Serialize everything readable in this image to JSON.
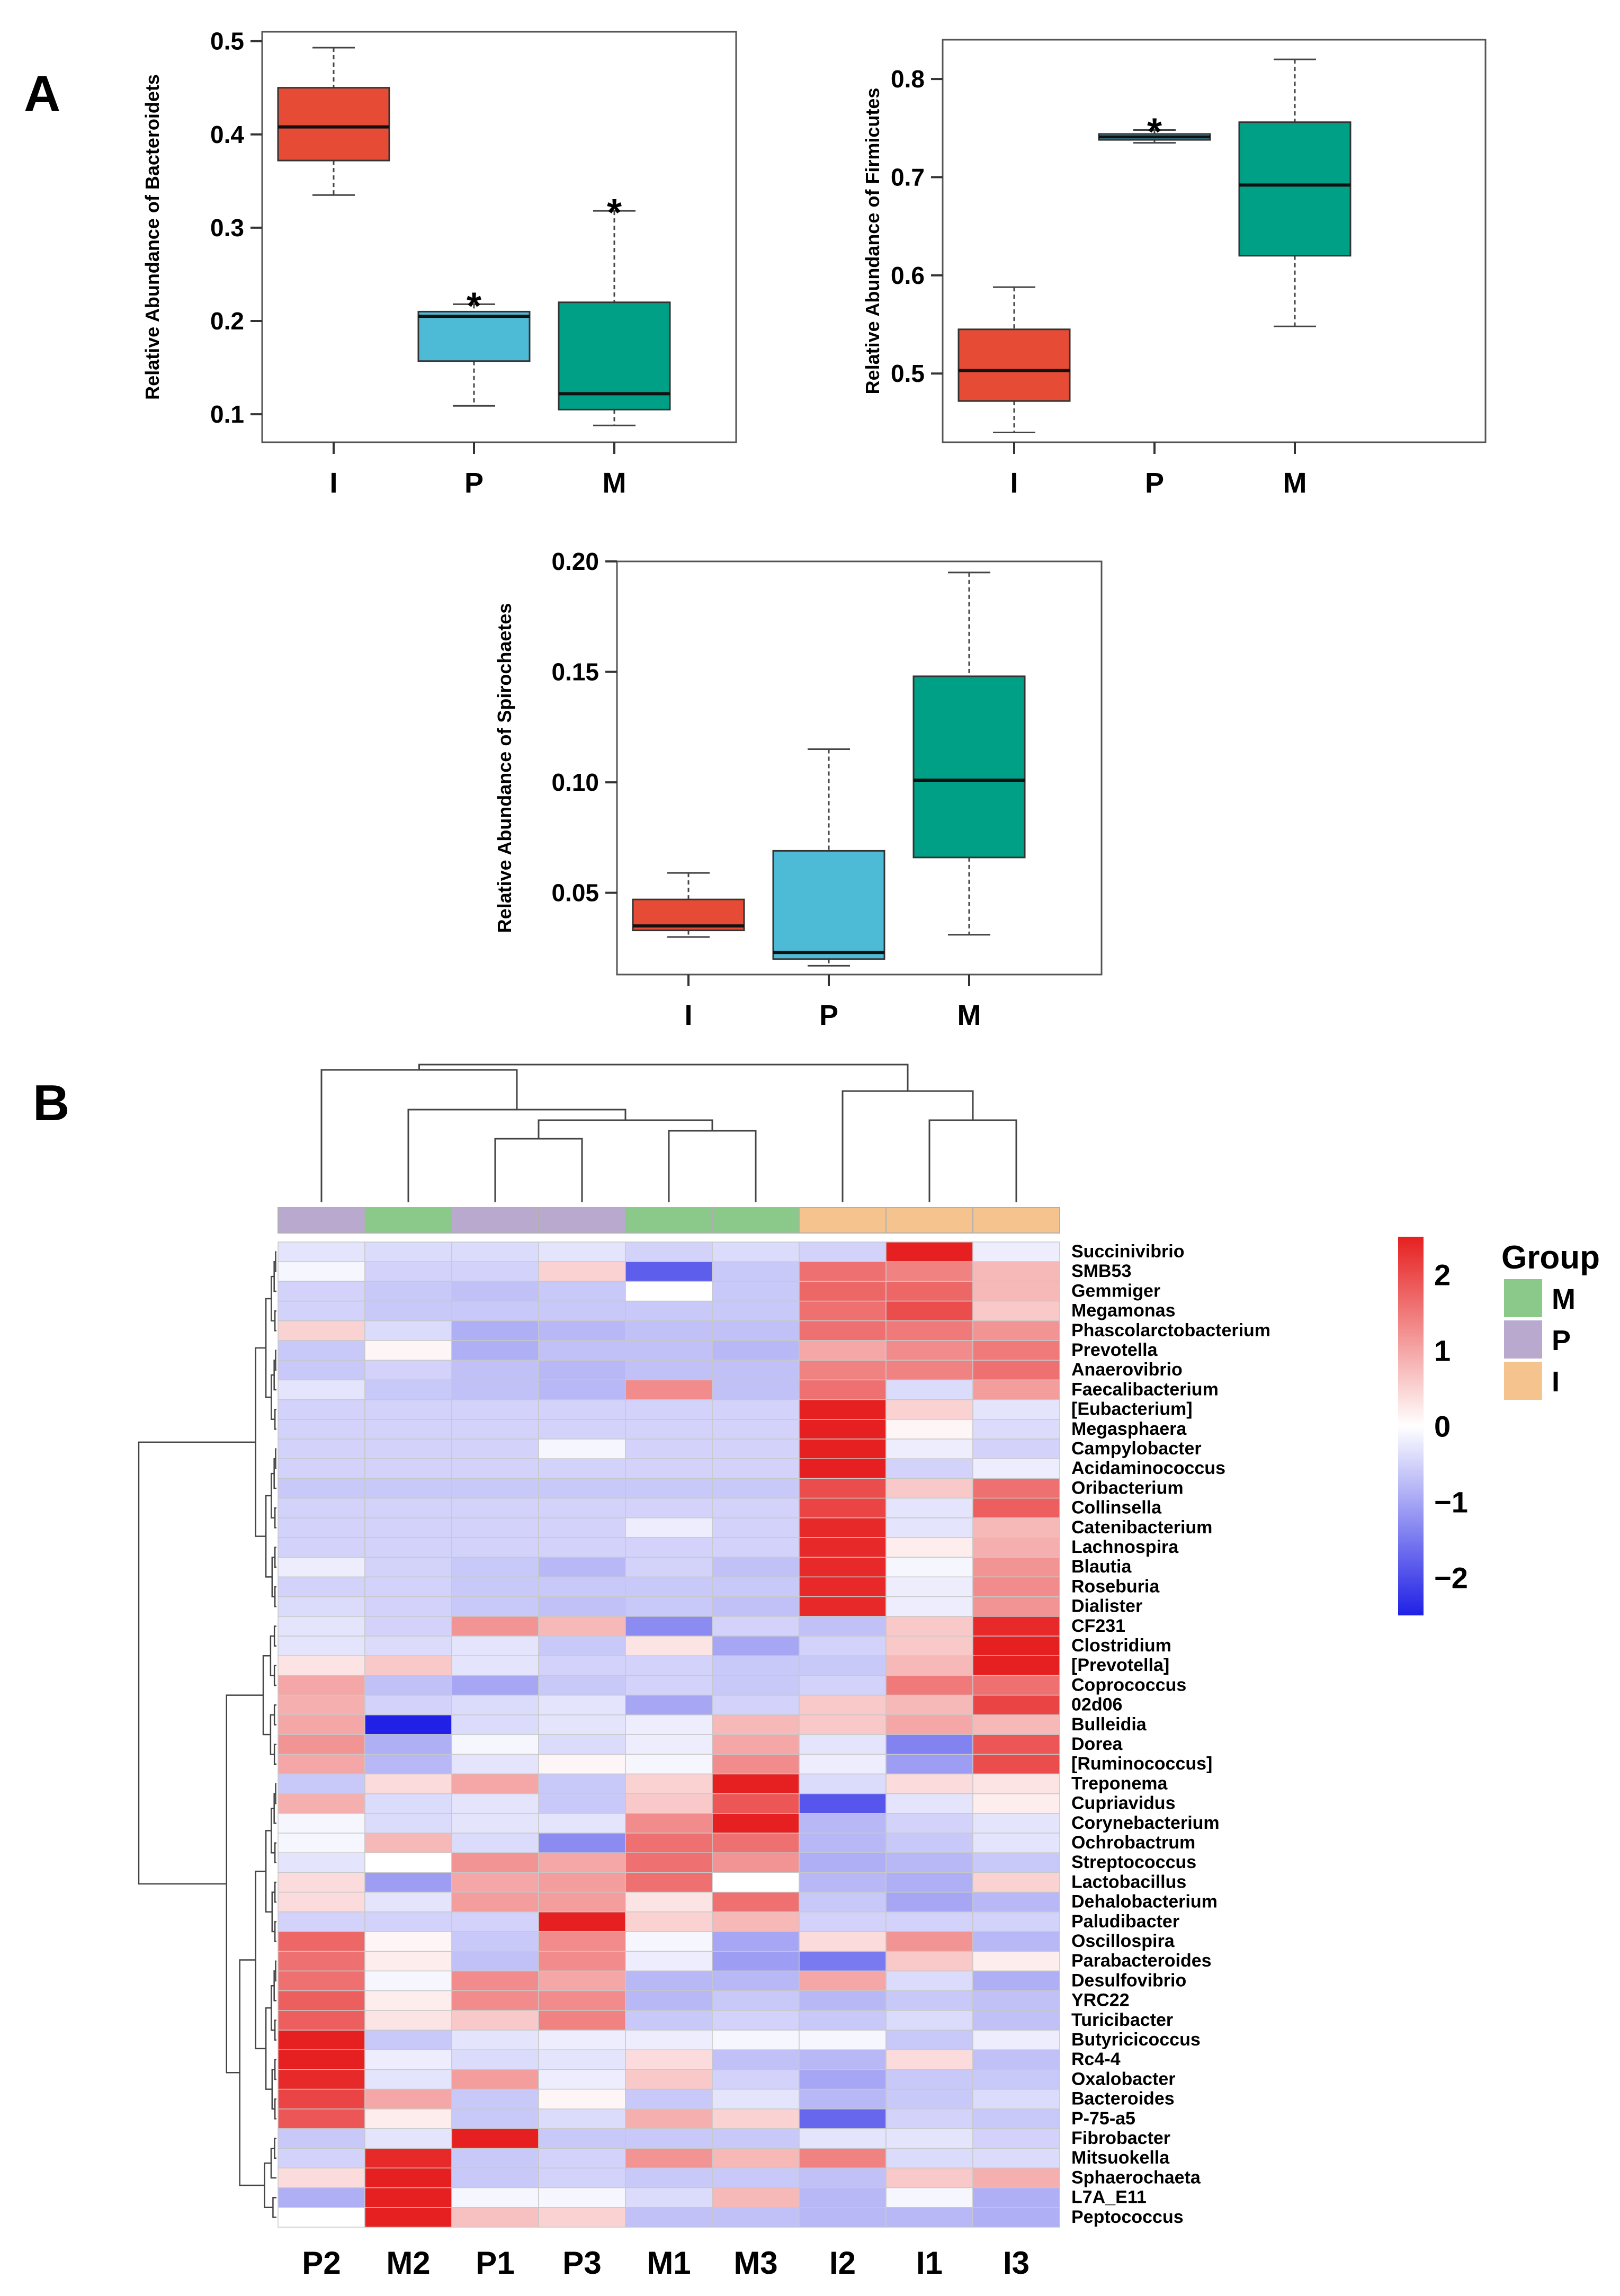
{
  "chart_data": [
    {
      "type": "box",
      "panel": "A",
      "ylabel": "Relative Abundance of Bacteroidets",
      "ylim": [
        0.07,
        0.51
      ],
      "yticks": [
        0.1,
        0.2,
        0.3,
        0.4,
        0.5
      ],
      "ytick_labels": [
        "0.1",
        "0.2",
        "0.3",
        "0.4",
        "0.5"
      ],
      "categories": [
        "I",
        "P",
        "M"
      ],
      "colors": [
        "#E64B35",
        "#4DBBD5",
        "#00A087"
      ],
      "boxes": [
        {
          "min": 0.335,
          "q1": 0.372,
          "median": 0.408,
          "q3": 0.45,
          "max": 0.493,
          "star": false
        },
        {
          "min": 0.109,
          "q1": 0.157,
          "median": 0.205,
          "q3": 0.21,
          "max": 0.218,
          "star": true
        },
        {
          "min": 0.088,
          "q1": 0.105,
          "median": 0.122,
          "q3": 0.22,
          "max": 0.318,
          "star": true
        }
      ],
      "star_text": "*"
    },
    {
      "type": "box",
      "ylabel": "Relative Abundance of Firmicutes",
      "ylim": [
        0.43,
        0.84
      ],
      "yticks": [
        0.5,
        0.6,
        0.7,
        0.8
      ],
      "ytick_labels": [
        "0.5",
        "0.6",
        "0.7",
        "0.8"
      ],
      "categories": [
        "I",
        "P",
        "M"
      ],
      "colors": [
        "#E64B35",
        "#4DBBD5",
        "#00A087"
      ],
      "boxes": [
        {
          "min": 0.44,
          "q1": 0.472,
          "median": 0.503,
          "q3": 0.545,
          "max": 0.588,
          "star": false
        },
        {
          "min": 0.735,
          "q1": 0.738,
          "median": 0.741,
          "q3": 0.744,
          "max": 0.748,
          "star": true
        },
        {
          "min": 0.548,
          "q1": 0.62,
          "median": 0.692,
          "q3": 0.756,
          "max": 0.82,
          "star": false
        }
      ],
      "star_text": "*"
    },
    {
      "type": "box",
      "ylabel": "Relative Abundance of Spirochaetes",
      "ylim": [
        0.013,
        0.2
      ],
      "yticks": [
        0.05,
        0.1,
        0.15,
        0.2
      ],
      "ytick_labels": [
        "0.05",
        "0.10",
        "0.15",
        "0.20"
      ],
      "categories": [
        "I",
        "P",
        "M"
      ],
      "colors": [
        "#E64B35",
        "#4DBBD5",
        "#00A087"
      ],
      "boxes": [
        {
          "min": 0.03,
          "q1": 0.033,
          "median": 0.035,
          "q3": 0.047,
          "max": 0.059,
          "star": false
        },
        {
          "min": 0.017,
          "q1": 0.02,
          "median": 0.023,
          "q3": 0.069,
          "max": 0.115,
          "star": false
        },
        {
          "min": 0.031,
          "q1": 0.066,
          "median": 0.101,
          "q3": 0.148,
          "max": 0.195,
          "star": false
        }
      ],
      "star_text": "*"
    },
    {
      "type": "heatmap",
      "panel": "B",
      "columns": [
        "P2",
        "M2",
        "P1",
        "P3",
        "M1",
        "M3",
        "I2",
        "I1",
        "I3"
      ],
      "column_groups": [
        "P",
        "M",
        "P",
        "P",
        "M",
        "M",
        "I",
        "I",
        "I"
      ],
      "rows": [
        "Succinivibrio",
        "SMB53",
        "Gemmiger",
        "Megamonas",
        "Phascolarctobacterium",
        "Prevotella",
        "Anaerovibrio",
        "Faecalibacterium",
        "[Eubacterium]",
        "Megasphaera",
        "Campylobacter",
        "Acidaminococcus",
        "Oribacterium",
        "Collinsella",
        "Catenibacterium",
        "Lachnospira",
        "Blautia",
        "Roseburia",
        "Dialister",
        "CF231",
        "Clostridium",
        "[Prevotella]",
        "Coprococcus",
        "02d06",
        "Bulleidia",
        "Dorea",
        "[Ruminococcus]",
        "Treponema",
        "Cupriavidus",
        "Corynebacterium",
        "Ochrobactrum",
        "Streptococcus",
        "Lactobacillus",
        "Dehalobacterium",
        "Paludibacter",
        "Oscillospira",
        "Parabacteroides",
        "Desulfovibrio",
        "YRC22",
        "Turicibacter",
        "Butyricicoccus",
        "Rc4-4",
        "Oxalobacter",
        "Bacteroides",
        "P-75-a5",
        "Fibrobacter",
        "Mitsuokella",
        "Sphaerochaeta",
        "L7A_E11",
        "Peptococcus"
      ],
      "values": [
        [
          -0.3,
          -0.4,
          -0.4,
          -0.3,
          -0.5,
          -0.4,
          -0.5,
          2.6,
          -0.2
        ],
        [
          -0.1,
          -0.5,
          -0.5,
          0.5,
          -1.8,
          -0.6,
          1.6,
          1.4,
          0.8
        ],
        [
          -0.5,
          -0.6,
          -0.7,
          -0.6,
          0.0,
          -0.6,
          1.7,
          1.7,
          0.8
        ],
        [
          -0.5,
          -0.6,
          -0.6,
          -0.6,
          -0.6,
          -0.6,
          1.6,
          2.0,
          0.6
        ],
        [
          0.5,
          -0.4,
          -0.9,
          -0.8,
          -0.7,
          -0.7,
          1.6,
          1.5,
          1.2
        ],
        [
          -0.6,
          0.1,
          -0.9,
          -0.7,
          -0.7,
          -0.8,
          1.0,
          1.3,
          1.5
        ],
        [
          -0.6,
          -0.5,
          -0.7,
          -0.8,
          -0.7,
          -0.7,
          1.4,
          1.4,
          1.6
        ],
        [
          -0.3,
          -0.6,
          -0.7,
          -0.8,
          1.3,
          -0.7,
          1.6,
          -0.4,
          1.1
        ],
        [
          -0.5,
          -0.5,
          -0.5,
          -0.5,
          -0.5,
          -0.5,
          2.6,
          0.5,
          -0.3
        ],
        [
          -0.5,
          -0.5,
          -0.5,
          -0.5,
          -0.5,
          -0.5,
          2.6,
          0.1,
          -0.4
        ],
        [
          -0.5,
          -0.5,
          -0.5,
          -0.1,
          -0.5,
          -0.5,
          2.6,
          -0.2,
          -0.5
        ],
        [
          -0.5,
          -0.5,
          -0.5,
          -0.5,
          -0.5,
          -0.5,
          2.6,
          -0.5,
          -0.2
        ],
        [
          -0.6,
          -0.6,
          -0.6,
          -0.6,
          -0.6,
          -0.6,
          2.0,
          0.6,
          1.6
        ],
        [
          -0.5,
          -0.5,
          -0.5,
          -0.5,
          -0.5,
          -0.5,
          2.1,
          -0.3,
          1.8
        ],
        [
          -0.5,
          -0.5,
          -0.5,
          -0.5,
          -0.2,
          -0.5,
          2.4,
          -0.3,
          0.8
        ],
        [
          -0.5,
          -0.5,
          -0.5,
          -0.5,
          -0.5,
          -0.5,
          2.4,
          0.2,
          0.9
        ],
        [
          -0.2,
          -0.5,
          -0.6,
          -0.8,
          -0.5,
          -0.7,
          2.4,
          -0.1,
          1.2
        ],
        [
          -0.5,
          -0.5,
          -0.6,
          -0.6,
          -0.6,
          -0.6,
          2.4,
          -0.2,
          1.3
        ],
        [
          -0.4,
          -0.5,
          -0.6,
          -0.7,
          -0.6,
          -0.7,
          2.4,
          -0.2,
          1.2
        ],
        [
          -0.3,
          -0.5,
          1.2,
          0.8,
          -1.3,
          -0.5,
          -0.7,
          0.6,
          2.4
        ],
        [
          -0.3,
          -0.4,
          -0.3,
          -0.6,
          0.3,
          -1.0,
          -0.5,
          0.6,
          2.6
        ],
        [
          0.3,
          0.6,
          -0.3,
          -0.5,
          -0.5,
          -0.6,
          -0.6,
          0.8,
          2.6
        ],
        [
          1.0,
          -0.7,
          -1.0,
          -0.6,
          -0.5,
          -0.6,
          -0.5,
          1.5,
          1.6
        ],
        [
          0.9,
          -0.5,
          -0.4,
          -0.3,
          -1.0,
          -0.5,
          0.6,
          0.8,
          2.1
        ],
        [
          1.0,
          -2.5,
          -0.4,
          -0.3,
          -0.2,
          0.8,
          0.6,
          1.0,
          0.8
        ],
        [
          1.2,
          -0.9,
          -0.1,
          -0.4,
          -0.2,
          1.0,
          -0.3,
          -1.4,
          1.9
        ],
        [
          1.0,
          -0.8,
          -0.3,
          0.1,
          -0.1,
          1.3,
          -0.2,
          -1.1,
          2.0
        ],
        [
          -0.6,
          0.4,
          1.0,
          -0.6,
          0.5,
          2.6,
          -0.4,
          0.4,
          0.3
        ],
        [
          0.9,
          -0.4,
          -0.3,
          -0.6,
          0.6,
          1.9,
          -1.9,
          -0.3,
          0.2
        ],
        [
          -0.1,
          -0.4,
          -0.3,
          -0.3,
          1.3,
          2.6,
          -0.8,
          -0.5,
          -0.3
        ],
        [
          -0.1,
          0.8,
          -0.4,
          -1.3,
          1.6,
          1.6,
          -0.8,
          -0.6,
          -0.3
        ],
        [
          -0.3,
          0.0,
          1.2,
          1.0,
          1.6,
          1.2,
          -0.9,
          -0.8,
          -0.6
        ],
        [
          0.4,
          -1.1,
          1.0,
          1.1,
          1.6,
          0.0,
          -0.8,
          -0.9,
          0.5
        ],
        [
          0.4,
          -0.3,
          1.1,
          1.1,
          0.3,
          1.6,
          -0.6,
          -1.0,
          -0.8
        ],
        [
          -0.5,
          -0.5,
          -0.5,
          2.6,
          0.5,
          0.8,
          -0.5,
          -0.5,
          -0.5
        ],
        [
          1.7,
          0.1,
          -0.6,
          1.3,
          -0.1,
          -1.0,
          0.4,
          1.2,
          -0.8
        ],
        [
          1.6,
          0.2,
          -0.7,
          1.3,
          -0.2,
          -1.1,
          -1.5,
          0.6,
          0.2
        ],
        [
          1.6,
          -0.1,
          1.3,
          1.0,
          -0.8,
          -0.8,
          1.0,
          -0.4,
          -0.9
        ],
        [
          1.8,
          0.2,
          1.3,
          1.3,
          -0.8,
          -0.6,
          -0.8,
          -0.6,
          -0.7
        ],
        [
          1.8,
          0.3,
          0.6,
          1.4,
          -0.6,
          -0.5,
          -0.6,
          -0.4,
          -0.7
        ],
        [
          2.6,
          -0.6,
          -0.3,
          -0.2,
          -0.2,
          -0.1,
          -0.1,
          -0.6,
          -0.2
        ],
        [
          2.6,
          -0.2,
          -0.4,
          -0.3,
          0.4,
          -0.7,
          -0.8,
          0.4,
          -0.7
        ],
        [
          2.4,
          -0.3,
          1.1,
          -0.2,
          0.6,
          -0.5,
          -1.0,
          -0.6,
          -0.6
        ],
        [
          2.1,
          1.0,
          -0.6,
          0.1,
          -0.6,
          -0.3,
          -0.8,
          -0.6,
          -0.4
        ],
        [
          1.9,
          0.2,
          -0.6,
          -0.4,
          0.9,
          0.5,
          -1.7,
          -0.5,
          -0.6
        ],
        [
          -0.6,
          -0.3,
          2.6,
          -0.6,
          -0.6,
          -0.6,
          -0.3,
          -0.3,
          -0.5
        ],
        [
          -0.5,
          2.4,
          -0.6,
          -0.5,
          1.2,
          0.8,
          1.4,
          -0.4,
          -0.4
        ],
        [
          0.4,
          2.6,
          -0.6,
          -0.5,
          -0.6,
          -0.6,
          -0.7,
          0.6,
          0.9
        ],
        [
          -0.9,
          2.6,
          -0.1,
          -0.1,
          -0.4,
          0.8,
          -0.8,
          -0.1,
          -0.9
        ],
        [
          0.0,
          2.6,
          0.7,
          0.5,
          -0.7,
          -0.7,
          -0.8,
          -0.8,
          -0.9
        ]
      ],
      "color_scale": {
        "min": -2.5,
        "max": 2.5,
        "low": "#2020E6",
        "mid": "#FFFFFF",
        "high": "#E62020",
        "ticks": [
          2,
          1,
          0,
          -1,
          -2
        ],
        "tick_labels": [
          "2",
          "1",
          "0",
          "−1",
          "−2"
        ]
      },
      "legend": {
        "title": "Group",
        "entries": [
          {
            "label": "M",
            "color": "#8BC98B"
          },
          {
            "label": "P",
            "color": "#BAA9CF"
          },
          {
            "label": "I",
            "color": "#F5C48E"
          }
        ]
      }
    }
  ],
  "labels": {
    "panel_a": "A",
    "panel_b": "B"
  }
}
